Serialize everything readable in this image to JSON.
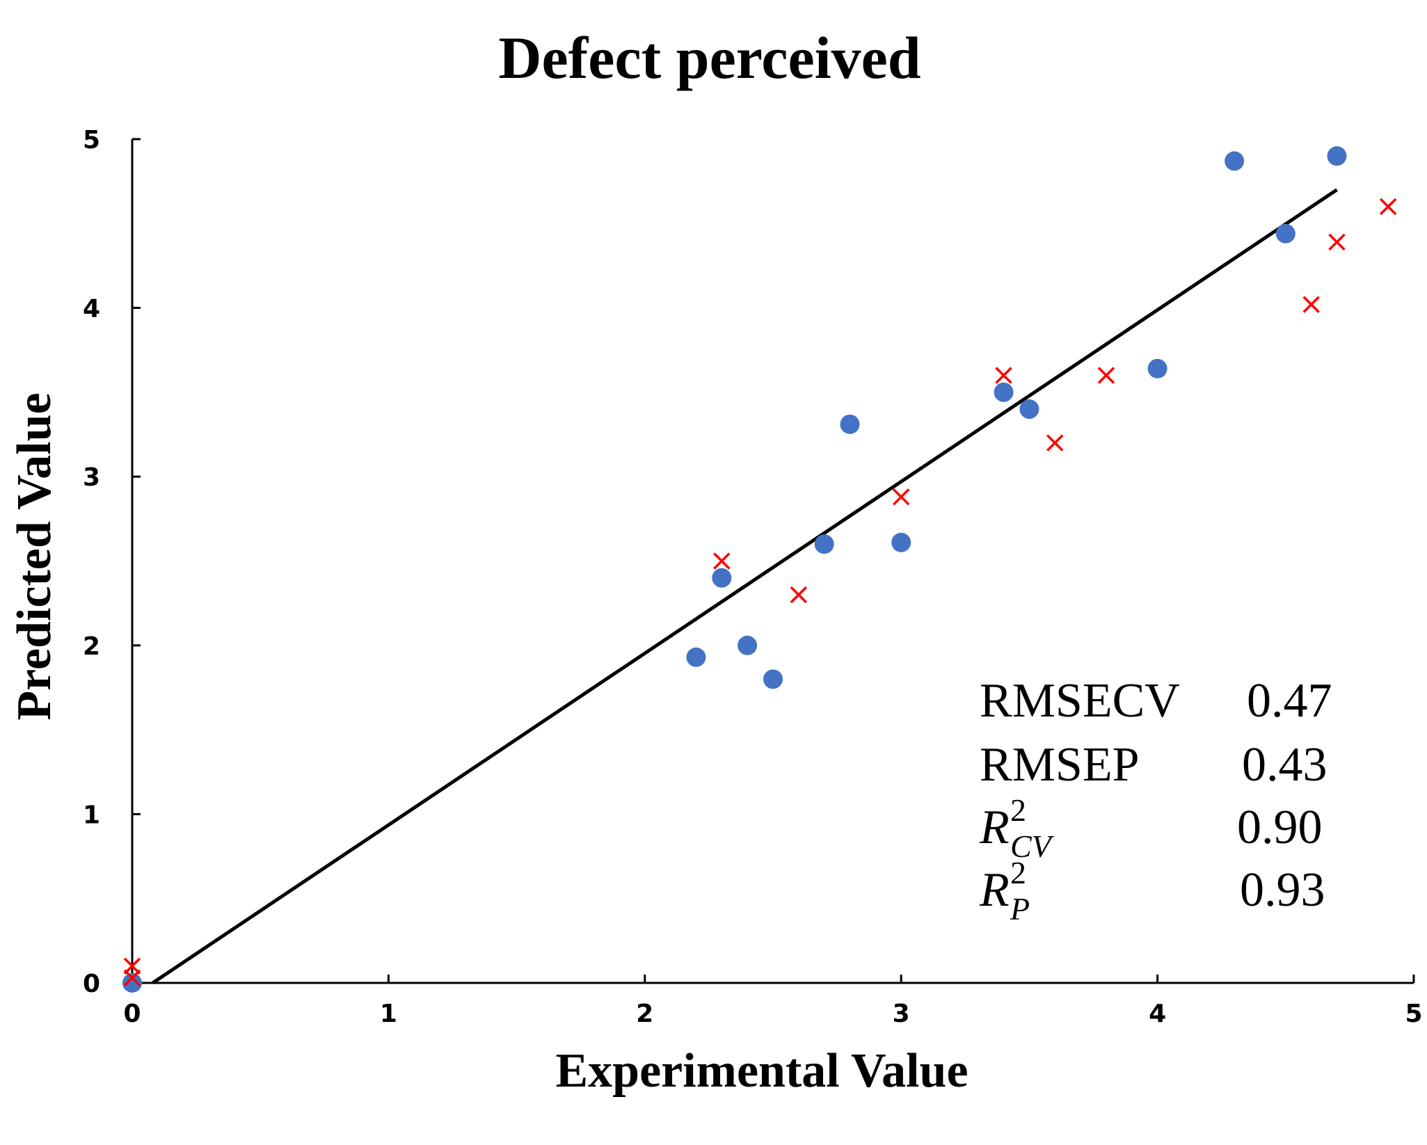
{
  "chart_data": {
    "type": "scatter",
    "title": "Defect perceived",
    "xlabel": "Experimental Value",
    "ylabel": "Predicted Value",
    "xlim": [
      0,
      5
    ],
    "ylim": [
      0,
      5
    ],
    "xticks": [
      "0",
      "1",
      "2",
      "3",
      "4",
      "5"
    ],
    "yticks": [
      "0",
      "1",
      "2",
      "3",
      "4",
      "5"
    ],
    "grid": false,
    "legend": "none",
    "series": [
      {
        "marker": "circle",
        "color": "#4472C4",
        "points": [
          [
            0.0,
            0.0
          ],
          [
            2.2,
            1.93
          ],
          [
            2.3,
            2.4
          ],
          [
            2.4,
            2.0
          ],
          [
            2.5,
            1.8
          ],
          [
            2.7,
            2.6
          ],
          [
            2.8,
            3.31
          ],
          [
            3.0,
            2.61
          ],
          [
            3.4,
            3.5
          ],
          [
            3.5,
            3.4
          ],
          [
            4.0,
            3.64
          ],
          [
            4.3,
            4.87
          ],
          [
            4.5,
            4.44
          ],
          [
            4.7,
            4.9
          ]
        ]
      },
      {
        "marker": "cross",
        "color": "#FF0000",
        "points": [
          [
            0.0,
            0.1
          ],
          [
            0.0,
            0.03
          ],
          [
            2.3,
            2.5
          ],
          [
            2.6,
            2.3
          ],
          [
            3.0,
            2.88
          ],
          [
            3.4,
            3.6
          ],
          [
            3.6,
            3.2
          ],
          [
            3.8,
            3.6
          ],
          [
            4.6,
            4.02
          ],
          [
            4.7,
            4.39
          ],
          [
            4.9,
            4.6
          ]
        ]
      }
    ],
    "regression_line": {
      "color": "#000000",
      "from": [
        0.08,
        0.0
      ],
      "to": [
        4.7,
        4.7
      ]
    },
    "stats": [
      {
        "label": "RMSECV",
        "value": "0.47"
      },
      {
        "label": "RMSEP",
        "value": "0.43"
      },
      {
        "label_base": "R",
        "label_sup": "2",
        "label_sub": "CV",
        "value": "0.90"
      },
      {
        "label_base": "R",
        "label_sup": "2",
        "label_sub": "P",
        "value": "0.93"
      }
    ]
  }
}
